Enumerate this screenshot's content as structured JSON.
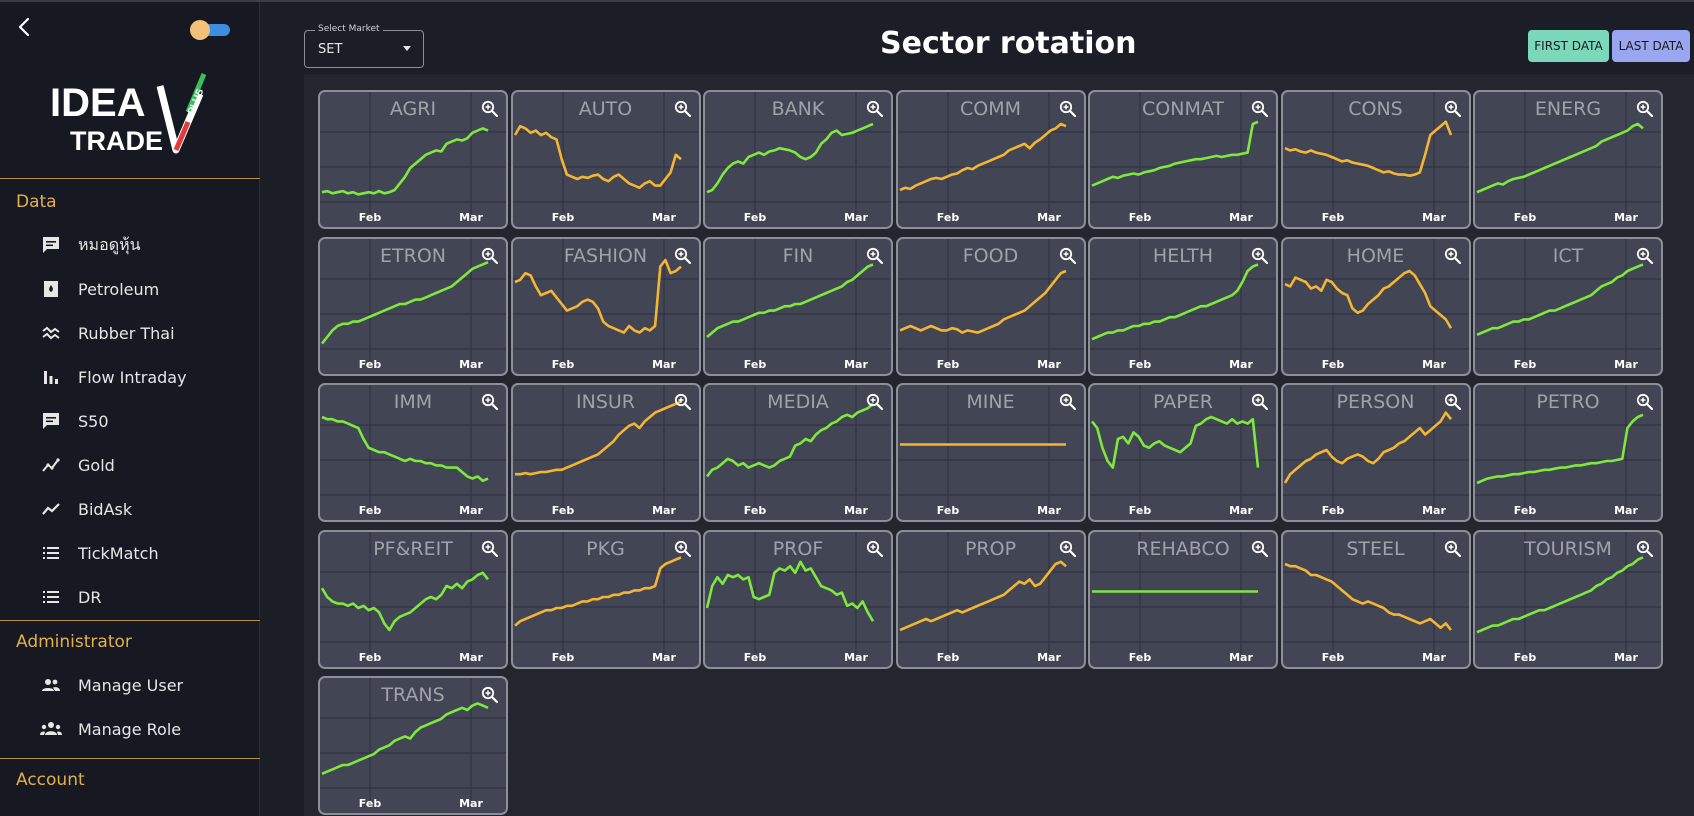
{
  "sidebar": {
    "logo_text": "IDEATRADE PLUS",
    "sections": {
      "data": "Data",
      "admin": "Administrator",
      "account": "Account"
    },
    "items": [
      {
        "label": "หมอดูหุ้น",
        "icon": "chat-icon"
      },
      {
        "label": "Petroleum",
        "icon": "petroleum-icon"
      },
      {
        "label": "Rubber Thai",
        "icon": "wave-icon"
      },
      {
        "label": "Flow Intraday",
        "icon": "bar-chart-icon"
      },
      {
        "label": "S50",
        "icon": "chat-icon"
      },
      {
        "label": "Gold",
        "icon": "trend-icon"
      },
      {
        "label": "BidAsk",
        "icon": "line-chart-icon"
      },
      {
        "label": "TickMatch",
        "icon": "list-icon"
      },
      {
        "label": "DR",
        "icon": "list-icon"
      }
    ],
    "admin_items": [
      {
        "label": "Manage User",
        "icon": "users-icon"
      },
      {
        "label": "Manage Role",
        "icon": "group-icon"
      }
    ]
  },
  "header": {
    "market_legend": "Select Market",
    "market_value": "SET",
    "title": "Sector rotation",
    "first_data": "FIRST DATA",
    "last_data": "LAST DATA"
  },
  "colors": {
    "up": "#7ee83f",
    "down": "#f4b535",
    "accent": "#e3b04b"
  },
  "chart_data": {
    "type": "line",
    "x_tick_labels": [
      "Feb",
      "Mar"
    ],
    "sectors": [
      {
        "name": "AGRI",
        "trend": "up",
        "values": [
          18,
          19,
          17,
          18,
          19,
          17,
          18,
          16,
          17,
          18,
          17,
          19,
          17,
          18,
          20,
          26,
          32,
          40,
          44,
          48,
          52,
          54,
          56,
          55,
          62,
          64,
          66,
          65,
          67,
          72,
          74,
          76,
          74
        ]
      },
      {
        "name": "AUTO",
        "trend": "down",
        "values": [
          70,
          78,
          76,
          72,
          74,
          70,
          72,
          68,
          66,
          48,
          34,
          32,
          30,
          32,
          31,
          33,
          34,
          30,
          28,
          32,
          34,
          30,
          26,
          24,
          22,
          26,
          28,
          24,
          24,
          30,
          36,
          52,
          48
        ]
      },
      {
        "name": "BANK",
        "trend": "up",
        "values": [
          18,
          20,
          26,
          34,
          40,
          44,
          46,
          44,
          50,
          52,
          54,
          52,
          55,
          56,
          58,
          57,
          56,
          54,
          50,
          48,
          50,
          54,
          62,
          66,
          72,
          74,
          70,
          71,
          72,
          74,
          76,
          78,
          80
        ]
      },
      {
        "name": "COMM",
        "trend": "down",
        "values": [
          20,
          22,
          21,
          24,
          26,
          28,
          30,
          31,
          30,
          32,
          34,
          35,
          38,
          40,
          39,
          42,
          44,
          46,
          48,
          50,
          52,
          56,
          58,
          60,
          62,
          58,
          63,
          66,
          70,
          74,
          76,
          80,
          78
        ]
      },
      {
        "name": "CONMAT",
        "trend": "up",
        "values": [
          24,
          26,
          28,
          30,
          32,
          31,
          33,
          34,
          35,
          34,
          36,
          37,
          38,
          40,
          41,
          42,
          44,
          45,
          46,
          47,
          48,
          48,
          49,
          50,
          51,
          50,
          51,
          52,
          52,
          53,
          54,
          80,
          82
        ]
      },
      {
        "name": "CONS",
        "trend": "down",
        "values": [
          58,
          56,
          57,
          55,
          54,
          56,
          54,
          53,
          52,
          50,
          48,
          46,
          47,
          45,
          44,
          43,
          42,
          40,
          38,
          36,
          37,
          35,
          34,
          34,
          33,
          34,
          36,
          52,
          70,
          74,
          78,
          82,
          70
        ]
      },
      {
        "name": "ENERG",
        "trend": "up",
        "values": [
          18,
          20,
          22,
          24,
          26,
          25,
          28,
          30,
          31,
          32,
          34,
          36,
          38,
          40,
          42,
          44,
          46,
          48,
          50,
          52,
          54,
          56,
          58,
          60,
          64,
          66,
          68,
          70,
          72,
          74,
          78,
          80,
          76
        ]
      },
      {
        "name": "ETRON",
        "trend": "up",
        "values": [
          14,
          20,
          26,
          30,
          32,
          32,
          34,
          34,
          36,
          38,
          40,
          42,
          44,
          46,
          48,
          50,
          50,
          52,
          54,
          54,
          56,
          58,
          60,
          62,
          64,
          66,
          70,
          74,
          78,
          82,
          84,
          86,
          88
        ]
      },
      {
        "name": "FASHION",
        "trend": "down",
        "values": [
          70,
          72,
          78,
          76,
          66,
          58,
          60,
          62,
          56,
          50,
          44,
          46,
          48,
          52,
          54,
          52,
          46,
          34,
          30,
          28,
          26,
          24,
          30,
          26,
          24,
          28,
          26,
          30,
          84,
          90,
          78,
          80,
          84
        ]
      },
      {
        "name": "FIN",
        "trend": "up",
        "values": [
          20,
          24,
          28,
          30,
          32,
          34,
          34,
          36,
          38,
          40,
          42,
          42,
          44,
          44,
          46,
          48,
          48,
          50,
          50,
          52,
          54,
          56,
          58,
          60,
          62,
          64,
          66,
          70,
          72,
          76,
          80,
          84,
          86
        ]
      },
      {
        "name": "FOOD",
        "trend": "down",
        "values": [
          26,
          28,
          30,
          28,
          26,
          28,
          30,
          28,
          26,
          26,
          28,
          27,
          24,
          26,
          25,
          24,
          26,
          28,
          30,
          32,
          36,
          38,
          40,
          42,
          44,
          48,
          52,
          56,
          60,
          66,
          72,
          78,
          80
        ]
      },
      {
        "name": "HELTH",
        "trend": "up",
        "values": [
          18,
          20,
          22,
          24,
          24,
          26,
          26,
          28,
          30,
          30,
          32,
          32,
          34,
          34,
          36,
          38,
          38,
          40,
          42,
          44,
          46,
          48,
          48,
          50,
          52,
          54,
          56,
          58,
          62,
          70,
          80,
          84,
          86
        ]
      },
      {
        "name": "HOME",
        "trend": "down",
        "values": [
          68,
          66,
          74,
          72,
          70,
          64,
          66,
          62,
          72,
          70,
          64,
          60,
          58,
          46,
          42,
          44,
          50,
          54,
          58,
          64,
          66,
          70,
          74,
          78,
          80,
          76,
          68,
          60,
          48,
          44,
          40,
          36,
          28
        ]
      },
      {
        "name": "ICT",
        "trend": "up",
        "values": [
          22,
          24,
          26,
          28,
          28,
          30,
          32,
          34,
          34,
          36,
          36,
          38,
          40,
          42,
          44,
          44,
          46,
          48,
          50,
          52,
          54,
          56,
          58,
          62,
          66,
          68,
          70,
          74,
          76,
          80,
          82,
          84,
          86
        ]
      },
      {
        "name": "IMM",
        "trend": "up",
        "values": [
          80,
          78,
          78,
          76,
          76,
          74,
          72,
          70,
          60,
          52,
          50,
          48,
          48,
          46,
          44,
          42,
          40,
          42,
          40,
          40,
          38,
          38,
          36,
          36,
          34,
          34,
          34,
          30,
          26,
          24,
          26,
          22,
          24
        ]
      },
      {
        "name": "INSUR",
        "trend": "down",
        "values": [
          28,
          28,
          29,
          28,
          29,
          30,
          30,
          31,
          32,
          32,
          34,
          36,
          38,
          40,
          42,
          44,
          46,
          50,
          54,
          58,
          64,
          68,
          72,
          74,
          70,
          76,
          80,
          84,
          86,
          88,
          90,
          92,
          94
        ]
      },
      {
        "name": "MEDIA",
        "trend": "up",
        "values": [
          26,
          32,
          34,
          38,
          42,
          40,
          36,
          38,
          34,
          36,
          38,
          36,
          34,
          36,
          40,
          42,
          44,
          54,
          56,
          60,
          58,
          64,
          68,
          70,
          74,
          76,
          80,
          82,
          80,
          84,
          86,
          88,
          92
        ]
      },
      {
        "name": "MINE",
        "trend": "down",
        "values": [
          55,
          55,
          55,
          55,
          55,
          55,
          55,
          55,
          55,
          55,
          55,
          55,
          55,
          55,
          55,
          55,
          55,
          55,
          55,
          55,
          55,
          55,
          55,
          55,
          55,
          55,
          55,
          55,
          55,
          55,
          55,
          55,
          55
        ]
      },
      {
        "name": "PAPER",
        "trend": "up",
        "values": [
          76,
          70,
          52,
          40,
          34,
          60,
          62,
          56,
          66,
          62,
          54,
          52,
          56,
          58,
          54,
          52,
          50,
          48,
          52,
          56,
          72,
          74,
          78,
          80,
          78,
          76,
          74,
          78,
          74,
          76,
          74,
          78,
          34
        ]
      },
      {
        "name": "PERSON",
        "trend": "down",
        "values": [
          20,
          28,
          32,
          36,
          40,
          42,
          46,
          48,
          50,
          44,
          40,
          38,
          42,
          44,
          46,
          44,
          40,
          38,
          42,
          48,
          50,
          52,
          56,
          58,
          62,
          66,
          70,
          64,
          68,
          72,
          76,
          84,
          78
        ]
      },
      {
        "name": "PETRO",
        "trend": "up",
        "values": [
          20,
          22,
          24,
          25,
          26,
          26,
          27,
          28,
          28,
          29,
          30,
          30,
          31,
          32,
          32,
          33,
          34,
          34,
          35,
          36,
          36,
          37,
          38,
          38,
          39,
          40,
          40,
          41,
          42,
          70,
          76,
          80,
          82
        ]
      },
      {
        "name": "PF&REIT",
        "trend": "up",
        "values": [
          58,
          50,
          46,
          44,
          44,
          42,
          44,
          40,
          42,
          38,
          40,
          36,
          26,
          20,
          28,
          32,
          34,
          36,
          40,
          44,
          48,
          50,
          48,
          52,
          60,
          58,
          62,
          58,
          64,
          66,
          70,
          72,
          66
        ]
      },
      {
        "name": "PKG",
        "trend": "down",
        "values": [
          24,
          28,
          30,
          32,
          34,
          36,
          38,
          38,
          40,
          40,
          42,
          42,
          44,
          46,
          46,
          48,
          48,
          50,
          50,
          52,
          52,
          54,
          54,
          56,
          56,
          58,
          58,
          60,
          76,
          80,
          82,
          84,
          86
        ]
      },
      {
        "name": "PROF",
        "trend": "up",
        "values": [
          40,
          60,
          68,
          62,
          70,
          68,
          70,
          66,
          68,
          50,
          48,
          50,
          52,
          72,
          76,
          74,
          78,
          72,
          82,
          74,
          76,
          68,
          60,
          58,
          56,
          52,
          54,
          42,
          44,
          40,
          46,
          36,
          28
        ]
      },
      {
        "name": "PROP",
        "trend": "down",
        "values": [
          20,
          22,
          24,
          26,
          28,
          30,
          28,
          30,
          32,
          34,
          36,
          38,
          36,
          38,
          40,
          42,
          44,
          46,
          48,
          50,
          52,
          56,
          60,
          64,
          62,
          66,
          60,
          62,
          68,
          74,
          80,
          82,
          78
        ]
      },
      {
        "name": "REHABCO",
        "trend": "up",
        "values": [
          55,
          55,
          55,
          55,
          55,
          55,
          55,
          55,
          55,
          55,
          55,
          55,
          55,
          55,
          55,
          55,
          55,
          55,
          55,
          55,
          55,
          55,
          55,
          55,
          55,
          55,
          55,
          55,
          55,
          55,
          55,
          55,
          55
        ]
      },
      {
        "name": "STEEL",
        "trend": "down",
        "values": [
          80,
          78,
          78,
          76,
          74,
          70,
          70,
          68,
          66,
          64,
          60,
          56,
          52,
          48,
          46,
          44,
          46,
          44,
          42,
          40,
          36,
          34,
          34,
          32,
          30,
          28,
          26,
          28,
          30,
          26,
          22,
          26,
          20
        ]
      },
      {
        "name": "TOURISM",
        "trend": "up",
        "values": [
          18,
          20,
          22,
          24,
          24,
          26,
          28,
          30,
          30,
          32,
          34,
          36,
          38,
          38,
          40,
          42,
          44,
          46,
          48,
          50,
          52,
          54,
          56,
          60,
          62,
          66,
          68,
          72,
          74,
          78,
          80,
          84,
          86
        ]
      },
      {
        "name": "TRANS",
        "trend": "up",
        "values": [
          22,
          24,
          26,
          28,
          30,
          30,
          32,
          34,
          36,
          38,
          40,
          44,
          46,
          48,
          52,
          54,
          56,
          54,
          60,
          64,
          66,
          68,
          70,
          72,
          76,
          78,
          80,
          82,
          80,
          84,
          86,
          84,
          82
        ]
      }
    ]
  }
}
